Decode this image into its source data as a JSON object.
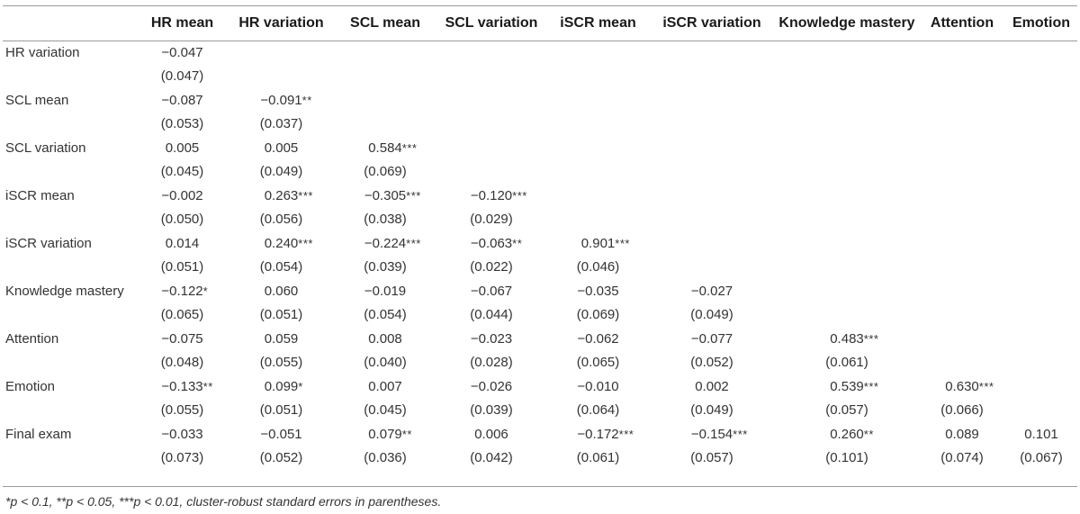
{
  "table": {
    "columns": [
      "",
      "HR mean",
      "HR variation",
      "SCL mean",
      "SCL variation",
      "iSCR mean",
      "iSCR variation",
      "Knowledge mastery",
      "Attention",
      "Emotion"
    ],
    "rows": [
      {
        "label": "HR variation",
        "coef": [
          {
            "v": "−0.047",
            "s": ""
          }
        ],
        "se": [
          "(0.047)"
        ]
      },
      {
        "label": "SCL mean",
        "coef": [
          {
            "v": "−0.087",
            "s": ""
          },
          {
            "v": "−0.091",
            "s": "**"
          }
        ],
        "se": [
          "(0.053)",
          "(0.037)"
        ]
      },
      {
        "label": "SCL variation",
        "coef": [
          {
            "v": "0.005",
            "s": ""
          },
          {
            "v": "0.005",
            "s": ""
          },
          {
            "v": "0.584",
            "s": "***"
          }
        ],
        "se": [
          "(0.045)",
          "(0.049)",
          "(0.069)"
        ]
      },
      {
        "label": "iSCR mean",
        "coef": [
          {
            "v": "−0.002",
            "s": ""
          },
          {
            "v": "0.263",
            "s": "***"
          },
          {
            "v": "−0.305",
            "s": "***"
          },
          {
            "v": "−0.120",
            "s": "***"
          }
        ],
        "se": [
          "(0.050)",
          "(0.056)",
          "(0.038)",
          "(0.029)"
        ]
      },
      {
        "label": "iSCR variation",
        "coef": [
          {
            "v": "0.014",
            "s": ""
          },
          {
            "v": "0.240",
            "s": "***"
          },
          {
            "v": "−0.224",
            "s": "***"
          },
          {
            "v": "−0.063",
            "s": "**"
          },
          {
            "v": "0.901",
            "s": "***"
          }
        ],
        "se": [
          "(0.051)",
          "(0.054)",
          "(0.039)",
          "(0.022)",
          "(0.046)"
        ]
      },
      {
        "label": "Knowledge mastery",
        "coef": [
          {
            "v": "−0.122",
            "s": "*"
          },
          {
            "v": "0.060",
            "s": ""
          },
          {
            "v": "−0.019",
            "s": ""
          },
          {
            "v": "−0.067",
            "s": ""
          },
          {
            "v": "−0.035",
            "s": ""
          },
          {
            "v": "−0.027",
            "s": ""
          }
        ],
        "se": [
          "(0.065)",
          "(0.051)",
          "(0.054)",
          "(0.044)",
          "(0.069)",
          "(0.049)"
        ]
      },
      {
        "label": "Attention",
        "coef": [
          {
            "v": "−0.075",
            "s": ""
          },
          {
            "v": "0.059",
            "s": ""
          },
          {
            "v": "0.008",
            "s": ""
          },
          {
            "v": "−0.023",
            "s": ""
          },
          {
            "v": "−0.062",
            "s": ""
          },
          {
            "v": "−0.077",
            "s": ""
          },
          {
            "v": "0.483",
            "s": "***"
          }
        ],
        "se": [
          "(0.048)",
          "(0.055)",
          "(0.040)",
          "(0.028)",
          "(0.065)",
          "(0.052)",
          "(0.061)"
        ]
      },
      {
        "label": "Emotion",
        "coef": [
          {
            "v": "−0.133",
            "s": "**"
          },
          {
            "v": "0.099",
            "s": "*"
          },
          {
            "v": "0.007",
            "s": ""
          },
          {
            "v": "−0.026",
            "s": ""
          },
          {
            "v": "−0.010",
            "s": ""
          },
          {
            "v": "0.002",
            "s": ""
          },
          {
            "v": "0.539",
            "s": "***"
          },
          {
            "v": "0.630",
            "s": "***"
          }
        ],
        "se": [
          "(0.055)",
          "(0.051)",
          "(0.045)",
          "(0.039)",
          "(0.064)",
          "(0.049)",
          "(0.057)",
          "(0.066)"
        ]
      },
      {
        "label": "Final exam",
        "coef": [
          {
            "v": "−0.033",
            "s": ""
          },
          {
            "v": "−0.051",
            "s": ""
          },
          {
            "v": "0.079",
            "s": "**"
          },
          {
            "v": "0.006",
            "s": ""
          },
          {
            "v": "−0.172",
            "s": "***"
          },
          {
            "v": "−0.154",
            "s": "***"
          },
          {
            "v": "0.260",
            "s": "**"
          },
          {
            "v": "0.089",
            "s": ""
          },
          {
            "v": "0.101",
            "s": ""
          }
        ],
        "se": [
          "(0.073)",
          "(0.052)",
          "(0.036)",
          "(0.042)",
          "(0.061)",
          "(0.057)",
          "(0.101)",
          "(0.074)",
          "(0.067)"
        ]
      }
    ]
  },
  "footnote": "*p < 0.1, **p < 0.05, ***p < 0.01, cluster-robust standard errors in parentheses."
}
